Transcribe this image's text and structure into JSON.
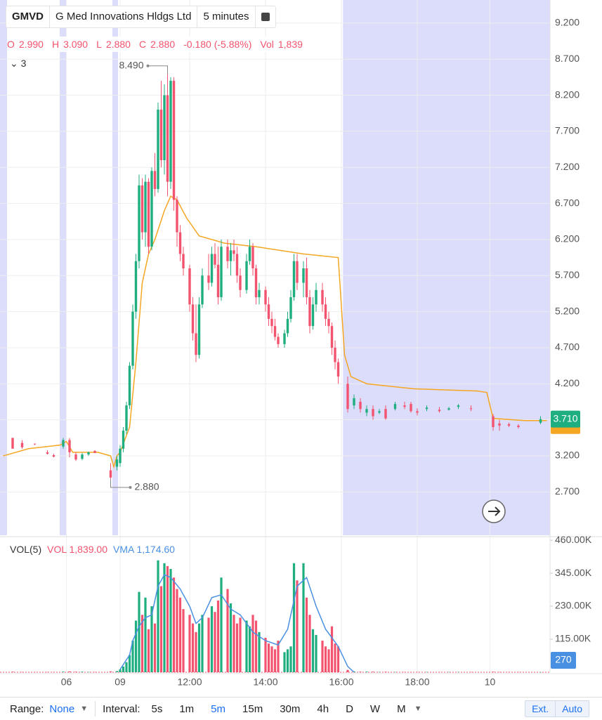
{
  "header": {
    "symbol": "GMVD",
    "name": "G Med Innovations Hldgs Ltd",
    "interval": "5 minutes",
    "ohlc": [
      {
        "label": "O",
        "value": "2.990"
      },
      {
        "label": "H",
        "value": "3.090"
      },
      {
        "label": "L",
        "value": "2.880"
      },
      {
        "label": "C",
        "value": "2.880"
      }
    ],
    "change": "-0.180 (-5.88%)",
    "vol_label": "Vol",
    "vol": "1,839",
    "studies": "3"
  },
  "volume_legend": {
    "title": "VOL(5)",
    "vol": "VOL 1,839.00",
    "vma": "VMA 1,174.60"
  },
  "toolbar": {
    "range_label": "Range:",
    "range_value": "None",
    "interval_label": "Interval:",
    "intervals": [
      "5s",
      "1m",
      "5m",
      "15m",
      "30m",
      "4h",
      "D",
      "W",
      "M"
    ],
    "ext": "Ext.",
    "auto": "Auto"
  },
  "chart_data": [
    {
      "type": "candlestick",
      "up_color": "#1fae80",
      "down_color": "#f2536e",
      "line_color": "#f5a623",
      "grid": true,
      "xlim": [
        -1,
        173
      ],
      "ylim": [
        2.1,
        9.52
      ],
      "xticks": [
        {
          "value": 20,
          "label": "06"
        },
        {
          "value": 37,
          "label": "09"
        },
        {
          "value": 59,
          "label": "12:00"
        },
        {
          "value": 83,
          "label": "14:00"
        },
        {
          "value": 107,
          "label": "16:00"
        },
        {
          "value": 131,
          "label": "18:00"
        },
        {
          "value": 154,
          "label": "10"
        }
      ],
      "yticks": [
        {
          "value": 2.7,
          "label": "2.700"
        },
        {
          "value": 3.2,
          "label": "3.200"
        },
        {
          "value": 3.7,
          "label": "3.700"
        },
        {
          "value": 4.2,
          "label": "4.200"
        },
        {
          "value": 4.7,
          "label": "4.700"
        },
        {
          "value": 5.2,
          "label": "5.200"
        },
        {
          "value": 5.7,
          "label": "5.700"
        },
        {
          "value": 6.2,
          "label": "6.200"
        },
        {
          "value": 6.7,
          "label": "6.700"
        },
        {
          "value": 7.2,
          "label": "7.200"
        },
        {
          "value": 7.7,
          "label": "7.700"
        },
        {
          "value": 8.2,
          "label": "8.200"
        },
        {
          "value": 8.7,
          "label": "8.700"
        },
        {
          "value": 9.2,
          "label": "9.200"
        }
      ],
      "x": [
        3,
        6,
        10,
        14,
        16,
        19,
        21,
        23,
        25,
        27,
        29,
        34,
        36,
        37,
        38,
        39,
        40,
        41,
        42,
        43,
        44,
        45,
        46,
        47,
        48,
        49,
        50,
        51,
        52,
        53,
        54,
        55,
        56,
        57,
        59,
        60,
        61,
        62,
        63,
        65,
        66,
        67,
        68,
        69,
        71,
        72,
        73,
        74,
        75,
        77,
        78,
        79,
        80,
        81,
        83,
        84,
        85,
        86,
        87,
        89,
        90,
        91,
        92,
        93,
        95,
        96,
        97,
        98,
        99,
        101,
        102,
        103,
        104,
        105,
        106,
        109,
        111,
        113,
        115,
        117,
        119,
        121,
        124,
        127,
        129,
        131,
        134,
        138,
        141,
        144,
        148,
        155,
        157,
        160,
        163,
        170
      ],
      "open": [
        3.45,
        3.38,
        3.37,
        3.25,
        3.21,
        3.33,
        3.42,
        3.22,
        3.16,
        3.22,
        3.27,
        3.0,
        3.05,
        3.1,
        3.3,
        3.55,
        3.9,
        4.45,
        5.2,
        5.9,
        6.95,
        6.3,
        7.0,
        6.1,
        7.15,
        6.9,
        8.0,
        7.3,
        8.2,
        7.0,
        8.4,
        6.75,
        6.3,
        6.0,
        5.8,
        5.3,
        4.9,
        4.6,
        5.3,
        5.7,
        5.6,
        6.0,
        5.85,
        5.4,
        6.1,
        5.9,
        6.05,
        6.0,
        5.7,
        5.5,
        5.9,
        6.1,
        5.8,
        5.4,
        5.5,
        5.3,
        5.1,
        5.0,
        4.85,
        4.75,
        4.9,
        5.1,
        5.4,
        5.9,
        5.6,
        5.8,
        5.4,
        5.0,
        5.3,
        5.5,
        5.3,
        5.1,
        5.0,
        4.7,
        4.5,
        4.2,
        3.9,
        3.95,
        3.8,
        3.85,
        3.8,
        3.85,
        3.85,
        3.9,
        3.92,
        3.82,
        3.85,
        3.84,
        3.84,
        3.88,
        3.86,
        3.75,
        3.65,
        3.64,
        3.62,
        3.66
      ],
      "high": [
        3.45,
        3.42,
        3.37,
        3.28,
        3.23,
        3.45,
        3.45,
        3.25,
        3.24,
        3.26,
        3.28,
        3.1,
        3.2,
        3.35,
        3.6,
        3.95,
        4.5,
        5.3,
        6.0,
        7.1,
        7.05,
        7.1,
        7.05,
        7.2,
        7.4,
        8.1,
        8.4,
        8.35,
        8.49,
        8.45,
        8.45,
        6.8,
        6.4,
        6.1,
        5.85,
        5.4,
        5.3,
        5.4,
        5.8,
        6.0,
        6.1,
        6.15,
        6.1,
        6.2,
        6.2,
        6.15,
        6.2,
        6.1,
        5.8,
        6.0,
        6.2,
        6.15,
        5.85,
        5.6,
        5.55,
        5.4,
        5.2,
        5.1,
        4.9,
        4.95,
        5.2,
        5.5,
        6.0,
        6.0,
        5.9,
        5.95,
        5.5,
        5.4,
        5.6,
        5.6,
        5.4,
        5.2,
        5.05,
        4.8,
        4.55,
        4.3,
        4.05,
        4.0,
        3.9,
        3.9,
        3.85,
        3.9,
        3.95,
        3.95,
        3.95,
        3.86,
        3.9,
        3.88,
        3.88,
        3.92,
        3.9,
        3.78,
        3.7,
        3.66,
        3.64,
        3.75
      ],
      "low": [
        3.3,
        3.3,
        3.35,
        3.22,
        3.18,
        3.3,
        3.18,
        3.13,
        3.14,
        3.2,
        3.24,
        2.88,
        3.0,
        3.05,
        3.25,
        3.5,
        3.85,
        4.4,
        5.1,
        5.8,
        6.2,
        6.1,
        6.0,
        6.05,
        6.8,
        6.85,
        7.2,
        7.1,
        6.8,
        6.9,
        6.6,
        6.1,
        5.9,
        5.7,
        5.2,
        4.8,
        4.5,
        4.55,
        5.25,
        5.5,
        5.55,
        5.8,
        5.3,
        5.35,
        5.8,
        5.7,
        5.9,
        5.6,
        5.4,
        5.45,
        5.85,
        5.7,
        5.3,
        5.3,
        5.2,
        5.0,
        4.9,
        4.8,
        4.7,
        4.7,
        4.85,
        5.05,
        5.35,
        5.5,
        5.4,
        5.3,
        4.9,
        4.95,
        5.2,
        5.2,
        5.0,
        4.9,
        4.6,
        4.4,
        4.2,
        3.8,
        3.85,
        3.8,
        3.75,
        3.7,
        3.78,
        3.7,
        3.83,
        3.85,
        3.8,
        3.76,
        3.82,
        3.8,
        3.83,
        3.85,
        3.82,
        3.55,
        3.55,
        3.6,
        3.58,
        3.64
      ],
      "close": [
        3.3,
        3.32,
        3.36,
        3.23,
        3.19,
        3.42,
        3.25,
        3.15,
        3.22,
        3.25,
        3.24,
        2.9,
        3.15,
        3.3,
        3.55,
        3.9,
        4.45,
        5.2,
        5.9,
        6.95,
        6.3,
        7.0,
        6.1,
        7.15,
        6.9,
        8.0,
        7.3,
        8.2,
        7.0,
        8.4,
        6.75,
        6.3,
        6.0,
        5.8,
        5.3,
        4.9,
        4.6,
        5.3,
        5.7,
        5.6,
        6.0,
        5.85,
        5.4,
        6.1,
        5.9,
        6.05,
        6.0,
        5.7,
        5.5,
        5.9,
        6.1,
        5.8,
        5.4,
        5.5,
        5.3,
        5.1,
        5.0,
        4.85,
        4.75,
        4.9,
        5.1,
        5.4,
        5.9,
        5.6,
        5.8,
        5.4,
        5.0,
        5.3,
        5.5,
        5.3,
        5.1,
        5.0,
        4.7,
        4.5,
        4.3,
        3.85,
        4.0,
        3.85,
        3.85,
        3.75,
        3.82,
        3.72,
        3.92,
        3.88,
        3.82,
        3.8,
        3.87,
        3.82,
        3.86,
        3.9,
        3.85,
        3.6,
        3.62,
        3.62,
        3.6,
        3.71
      ],
      "line": {
        "x": [
          0,
          8,
          18,
          20,
          22,
          30,
          34,
          35,
          36,
          37,
          40,
          42,
          44,
          46,
          48,
          51,
          53,
          55,
          58,
          62,
          70,
          80,
          95,
          106,
          108,
          110,
          115,
          130,
          150,
          153,
          155,
          165,
          172
        ],
        "values": [
          3.2,
          3.3,
          3.35,
          3.4,
          3.25,
          3.25,
          3.2,
          3.05,
          3.2,
          3.25,
          3.6,
          4.5,
          5.6,
          6.0,
          6.2,
          6.6,
          6.8,
          6.75,
          6.5,
          6.25,
          6.15,
          6.1,
          6.0,
          5.95,
          4.6,
          4.3,
          4.2,
          4.13,
          4.1,
          4.08,
          3.72,
          3.69,
          3.69
        ]
      },
      "high_label": {
        "value": 8.49,
        "label": "8.490"
      },
      "low_label": {
        "value": 2.88,
        "label": "2.880"
      },
      "last_price": {
        "value": 3.71,
        "label": "3.710"
      }
    },
    {
      "type": "bar",
      "xlim": [
        -1,
        173
      ],
      "ylim": [
        0,
        470000
      ],
      "color": "#f2536e",
      "line_color": "#4a90e2",
      "yticks": [
        {
          "value": 115000,
          "label": "115.00K"
        },
        {
          "value": 230000,
          "label": "230.00K"
        },
        {
          "value": 345000,
          "label": "345.00K"
        },
        {
          "value": 460000,
          "label": "460.00K"
        }
      ],
      "x": [
        3,
        6,
        10,
        14,
        16,
        19,
        21,
        23,
        25,
        27,
        29,
        34,
        36,
        37,
        38,
        39,
        40,
        41,
        42,
        43,
        44,
        45,
        46,
        47,
        48,
        49,
        50,
        51,
        52,
        53,
        54,
        55,
        56,
        57,
        59,
        60,
        61,
        62,
        63,
        65,
        66,
        67,
        68,
        69,
        71,
        72,
        73,
        74,
        75,
        77,
        78,
        79,
        80,
        81,
        83,
        84,
        85,
        86,
        87,
        89,
        90,
        91,
        92,
        93,
        95,
        96,
        97,
        98,
        99,
        101,
        102,
        103,
        104,
        105,
        106,
        109,
        111,
        113,
        115,
        117,
        119,
        121,
        124,
        127,
        129,
        131,
        134,
        138,
        141,
        144,
        148,
        155,
        157,
        160,
        163,
        170
      ],
      "values": [
        2000,
        1000,
        1000,
        1000,
        1000,
        2000,
        3000,
        2000,
        2000,
        1000,
        1000,
        3000,
        4000,
        10000,
        20000,
        35000,
        60000,
        110000,
        180000,
        280000,
        200000,
        260000,
        150000,
        230000,
        170000,
        390000,
        300000,
        380000,
        370000,
        360000,
        330000,
        290000,
        260000,
        220000,
        200000,
        170000,
        140000,
        170000,
        200000,
        190000,
        230000,
        210000,
        250000,
        330000,
        290000,
        240000,
        200000,
        170000,
        190000,
        180000,
        160000,
        200000,
        180000,
        140000,
        120000,
        100000,
        90000,
        80000,
        110000,
        70000,
        80000,
        90000,
        380000,
        320000,
        380000,
        260000,
        200000,
        150000,
        130000,
        110000,
        90000,
        80000,
        160000,
        100000,
        90000,
        8000,
        3000,
        2000,
        2000,
        2000,
        1000,
        2000,
        1000,
        1000,
        1000,
        1000,
        1000,
        1000,
        1000,
        1000,
        1000,
        2000,
        1000,
        1000,
        1000,
        270
      ],
      "line": {
        "x": [
          37,
          40,
          41,
          43,
          45,
          47,
          49,
          51,
          53,
          56,
          59,
          61,
          63,
          66,
          69,
          72,
          75,
          79,
          83,
          87,
          90,
          93,
          96,
          99,
          102,
          104,
          106,
          109,
          111
        ],
        "values": [
          10000,
          60000,
          110000,
          160000,
          190000,
          200000,
          300000,
          340000,
          330000,
          290000,
          230000,
          170000,
          190000,
          260000,
          270000,
          220000,
          200000,
          140000,
          110000,
          95000,
          150000,
          300000,
          330000,
          230000,
          150000,
          120000,
          90000,
          20000,
          0
        ]
      },
      "last_volume": {
        "value": 270,
        "label": "270"
      }
    }
  ]
}
